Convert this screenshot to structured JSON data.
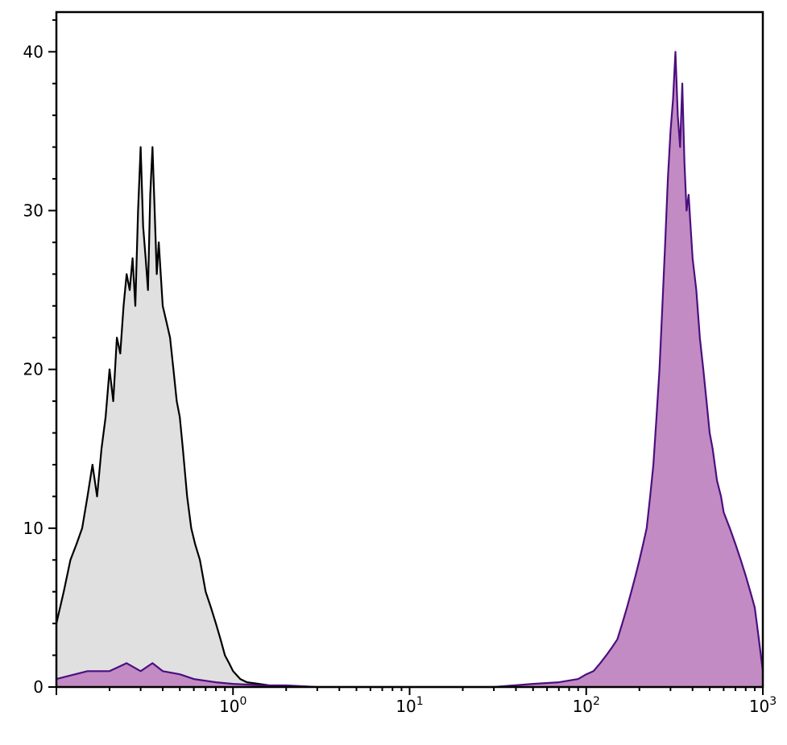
{
  "chart_data": {
    "type": "area",
    "title": "",
    "xlabel": "",
    "ylabel": "",
    "x_scale": "log",
    "xlim": [
      0.1,
      1000
    ],
    "ylim": [
      0,
      42.5
    ],
    "grid": false,
    "legend": "none",
    "y_ticks": [
      {
        "value": 0,
        "label": "0"
      },
      {
        "value": 10,
        "label": "10"
      },
      {
        "value": 20,
        "label": "20"
      },
      {
        "value": 30,
        "label": "30"
      },
      {
        "value": 40,
        "label": "40"
      }
    ],
    "x_ticks": [
      {
        "value": 1,
        "base": "10",
        "exp": "0"
      },
      {
        "value": 10,
        "base": "10",
        "exp": "1"
      },
      {
        "value": 100,
        "base": "10",
        "exp": "2"
      },
      {
        "value": 1000,
        "base": "10",
        "exp": "3"
      }
    ],
    "series": [
      {
        "fill": "#e0e0e0",
        "stroke": "#000000",
        "x": [
          0.1,
          0.11,
          0.12,
          0.13,
          0.14,
          0.15,
          0.16,
          0.17,
          0.18,
          0.19,
          0.2,
          0.21,
          0.22,
          0.23,
          0.24,
          0.25,
          0.26,
          0.27,
          0.28,
          0.29,
          0.3,
          0.31,
          0.32,
          0.33,
          0.34,
          0.35,
          0.36,
          0.37,
          0.38,
          0.4,
          0.42,
          0.44,
          0.46,
          0.48,
          0.5,
          0.52,
          0.55,
          0.58,
          0.61,
          0.65,
          0.7,
          0.75,
          0.8,
          0.85,
          0.9,
          0.95,
          1.0,
          1.1,
          1.2,
          1.4,
          1.6,
          1.8,
          2.0
        ],
        "values": [
          4,
          6,
          8,
          9,
          10,
          12,
          14,
          12,
          15,
          17,
          20,
          18,
          22,
          21,
          24,
          26,
          25,
          27,
          24,
          30,
          34,
          29,
          27,
          25,
          31,
          34,
          30,
          26,
          28,
          24,
          23,
          22,
          20,
          18,
          17,
          15,
          12,
          10,
          9,
          8,
          6,
          5,
          4,
          3,
          2,
          1.5,
          1,
          0.5,
          0.3,
          0.2,
          0.1,
          0.05,
          0
        ]
      },
      {
        "fill": "#c38bc3",
        "stroke": "#4b0f7f",
        "x": [
          0.1,
          0.15,
          0.2,
          0.25,
          0.3,
          0.35,
          0.4,
          0.5,
          0.6,
          0.8,
          1.0,
          1.5,
          2,
          3,
          30,
          50,
          70,
          90,
          100,
          110,
          120,
          130,
          140,
          150,
          160,
          170,
          180,
          190,
          200,
          210,
          220,
          230,
          240,
          250,
          260,
          270,
          280,
          290,
          300,
          310,
          320,
          330,
          340,
          350,
          360,
          370,
          380,
          390,
          400,
          420,
          440,
          460,
          480,
          500,
          520,
          550,
          580,
          600,
          650,
          700,
          750,
          800,
          850,
          900,
          950,
          1000
        ],
        "values": [
          0.5,
          1,
          1,
          1.5,
          1,
          1.5,
          1,
          0.8,
          0.5,
          0.3,
          0.2,
          0.1,
          0.1,
          0,
          0,
          0.2,
          0.3,
          0.5,
          0.8,
          1,
          1.5,
          2,
          2.5,
          3,
          4,
          5,
          6,
          7,
          8,
          9,
          10,
          12,
          14,
          17,
          20,
          24,
          28,
          32,
          35,
          37,
          40,
          36,
          34,
          38,
          33,
          30,
          31,
          29,
          27,
          25,
          22,
          20,
          18,
          16,
          15,
          13,
          12,
          11,
          10,
          9,
          8,
          7,
          6,
          5,
          3,
          1
        ]
      }
    ]
  }
}
